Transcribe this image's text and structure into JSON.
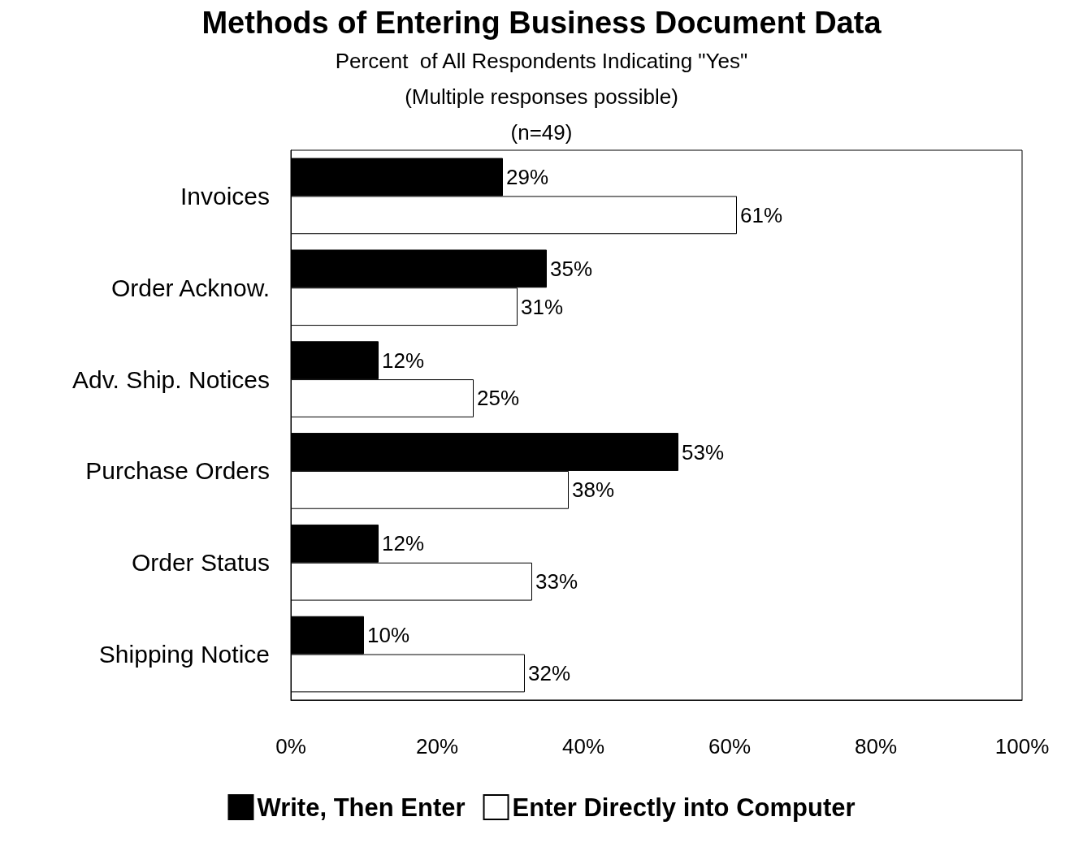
{
  "chart_data": {
    "type": "bar",
    "orientation": "horizontal",
    "title": "Methods of Entering Business Document Data",
    "subtitle": "Percent  of All Respondents Indicating \"Yes\"\n(Multiple responses possible)\n(n=49)",
    "categories": [
      "Invoices",
      "Order Acknow.",
      "Adv. Ship. Notices",
      "Purchase Orders",
      "Order Status",
      "Shipping Notice"
    ],
    "series": [
      {
        "name": "Write, Then Enter",
        "color": "#000000",
        "values": [
          29,
          35,
          12,
          53,
          12,
          10
        ],
        "value_labels": [
          "29%",
          "35%",
          "12%",
          "53%",
          "12%",
          "10%"
        ]
      },
      {
        "name": "Enter Directly into Computer",
        "color": "#ffffff",
        "values": [
          61,
          31,
          25,
          38,
          33,
          32
        ],
        "value_labels": [
          "61%",
          "31%",
          "25%",
          "38%",
          "33%",
          "32%"
        ]
      }
    ],
    "xlim": [
      0,
      100
    ],
    "xticks": [
      {
        "value": 0,
        "label": "0%"
      },
      {
        "value": 20,
        "label": "20%"
      },
      {
        "value": 40,
        "label": "40%"
      },
      {
        "value": 60,
        "label": "60%"
      },
      {
        "value": 80,
        "label": "80%"
      },
      {
        "value": 100,
        "label": "100%"
      }
    ],
    "grid": false,
    "legend": "bottom"
  }
}
